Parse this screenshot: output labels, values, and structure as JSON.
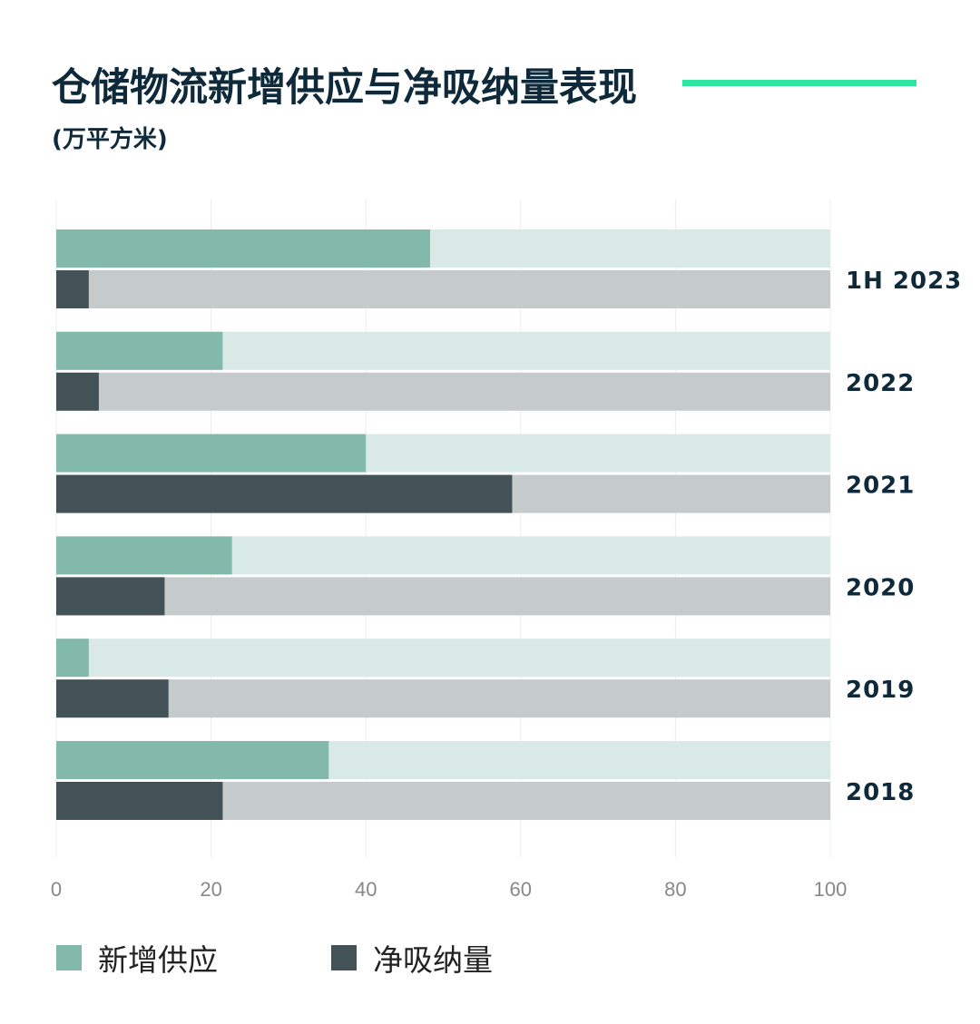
{
  "chart_data": {
    "type": "bar",
    "orientation": "horizontal",
    "title": "仓储物流新增供应与净吸纳量表现",
    "subtitle": "(万平方米)",
    "categories": [
      "1H 2023",
      "2022",
      "2021",
      "2020",
      "2019",
      "2018"
    ],
    "series": [
      {
        "name": "新增供应",
        "values": [
          48.3,
          21.5,
          40.0,
          22.7,
          4.2,
          35.2
        ],
        "color": "#82b9aa",
        "track_color": "#d9e9e5"
      },
      {
        "name": "净吸纳量",
        "values": [
          4.2,
          5.5,
          58.9,
          14.0,
          14.5,
          21.5
        ],
        "color": "#435257",
        "track_color": "#c5cbcb"
      }
    ],
    "xlim": [
      0,
      100
    ],
    "xticks": [
      0,
      20,
      40,
      60,
      80,
      100
    ],
    "grid": true,
    "legend_position": "bottom"
  },
  "colors": {
    "title": "#0e2a3a",
    "accent": "#2ee59d",
    "gridline": "#ececec",
    "tick_label": "#888888",
    "category_label": "#0e2a3a"
  }
}
